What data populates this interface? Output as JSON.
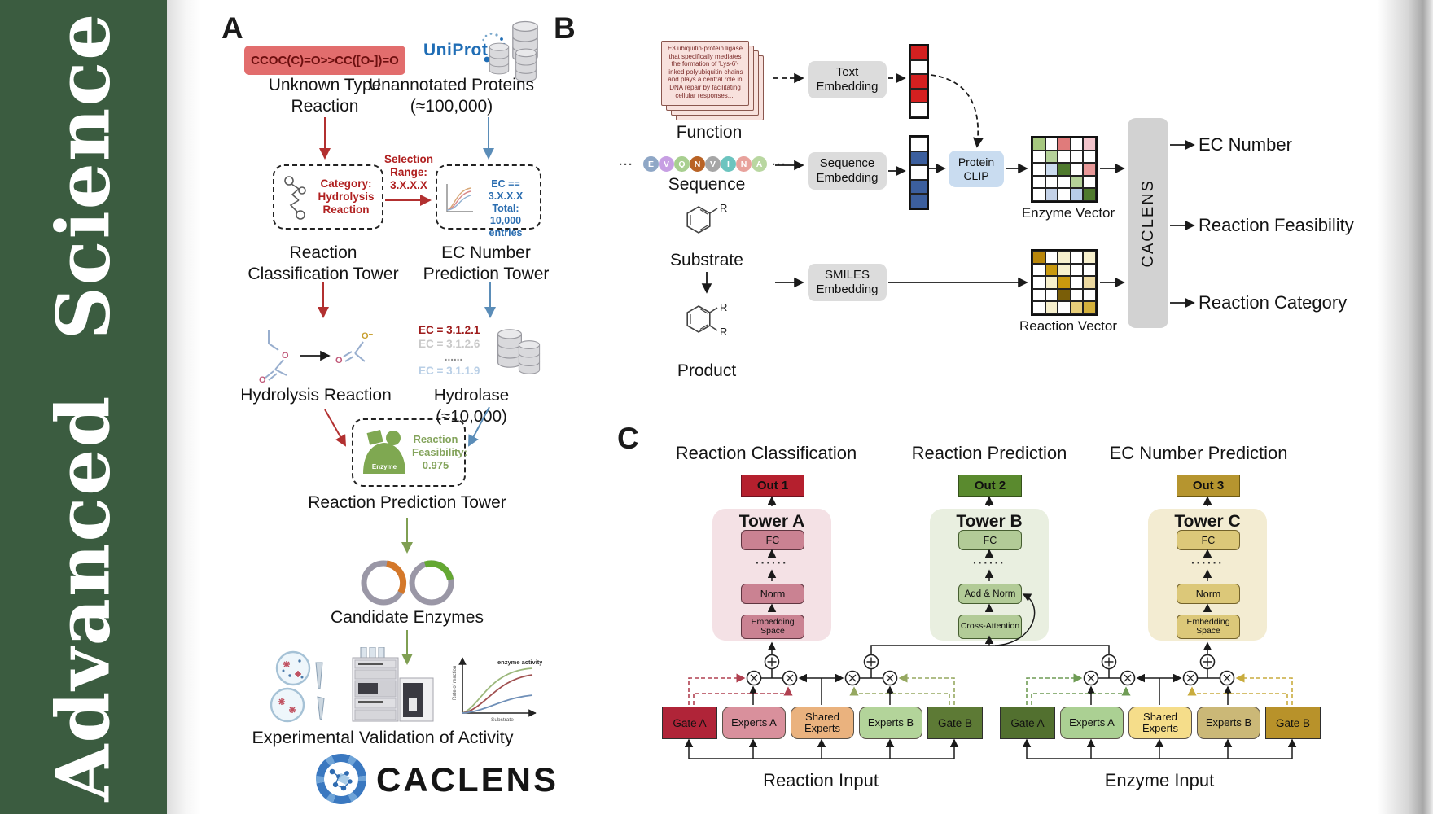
{
  "sidebar": {
    "journal": "Advanced Science",
    "bg_color": "#3b5c40"
  },
  "panelA": {
    "label": "A",
    "smiles": "CCOC(C)=O>>CC([O-])=O",
    "unknown": "Unknown Type Reaction",
    "uniprot": "UniProt",
    "unannotated": "Unannotated Proteins (≈100,000)",
    "category": [
      "Category:",
      "Hydrolysis",
      "Reaction"
    ],
    "selection": [
      "Selection",
      "Range:",
      "3.X.X.X"
    ],
    "ec_box": [
      "EC == 3.X.X.X",
      "Total: 10,000",
      "entries"
    ],
    "tower1": "Reaction Classification Tower",
    "tower2": "EC Number Prediction Tower",
    "hydrolysis": "Hydrolysis Reaction",
    "hydrolase": "Hydrolase (≈10,000)",
    "ec_list": [
      {
        "text": "EC = 3.1.2.1",
        "color": "#9e1c1c"
      },
      {
        "text": "EC = 3.1.2.6",
        "color": "#c9c9c9"
      },
      {
        "text": "......",
        "color": "#8a8a8a"
      },
      {
        "text": "EC = 3.1.1.9",
        "color": "#b9cfe6"
      }
    ],
    "feasibility": {
      "enzyme": "Enzyme",
      "lines": [
        "Reaction",
        "Feasibility:",
        "0.975"
      ]
    },
    "tower3": "Reaction Prediction Tower",
    "candidates": "Candidate Enzymes",
    "graph": {
      "annotation": "enzyme activity",
      "ylabel": "Rate of reaction",
      "xlabel": "Substrate"
    },
    "validation": "Experimental Validation of Activity",
    "logo": "CACLENS"
  },
  "panelB": {
    "label": "B",
    "function_text": "E3 ubiquitin-protein ligase that specifically mediates the formation of 'Lys-6'-linked polyubiquitin chains and plays a central role in DNA repair by facilitating cellular responses....",
    "function_label": "Function",
    "ellipsis": "···",
    "residues": [
      {
        "letter": "E",
        "color": "#8fa7c6"
      },
      {
        "letter": "V",
        "color": "#c79fe3"
      },
      {
        "letter": "Q",
        "color": "#a8cf90"
      },
      {
        "letter": "N",
        "color": "#b96325"
      },
      {
        "letter": "V",
        "color": "#a6a6a6"
      },
      {
        "letter": "I",
        "color": "#6cc4bf"
      },
      {
        "letter": "N",
        "color": "#e8a29c"
      },
      {
        "letter": "A",
        "color": "#b9d7a1"
      }
    ],
    "sequence_label": "Sequence",
    "substrate_label": "Substrate",
    "product_label": "Product",
    "r_label1": "R",
    "r_label2": "R",
    "r_label3": "R",
    "text_embedding": "Text Embedding",
    "sequence_embedding": "Sequence Embedding",
    "smiles_embedding": "SMILES Embedding",
    "protein_clip": "Protein CLIP",
    "text_vector": [
      "#d42020",
      "#ffffff",
      "#d42020",
      "#d42020",
      "#ffffff"
    ],
    "seq_vector": [
      "#ffffff",
      "#3c5f9e",
      "#ffffff",
      "#3c5f9e",
      "#3c5f9e"
    ],
    "enzyme_grid": [
      "#a6c77f",
      "#ffffff",
      "#e07b7b",
      "#ffffff",
      "#f2c4cb",
      "#ffffff",
      "#b5d29a",
      "#ffffff",
      "#ffffff",
      "#ffffff",
      "#ffffff",
      "#ccdcf0",
      "#4f7a2e",
      "#ffffff",
      "#e89898",
      "#ffffff",
      "#ffffff",
      "#ffffff",
      "#b5d29a",
      "#ffffff",
      "#ffffff",
      "#c4d2e8",
      "#ffffff",
      "#b8cce8",
      "#4f7a2e"
    ],
    "reaction_grid": [
      "#b8860b",
      "#ffffff",
      "#f7f0cd",
      "#ffffff",
      "#f7f0cd",
      "#ffffff",
      "#c9990e",
      "#f7f0cd",
      "#ffffff",
      "#ffffff",
      "#ffffff",
      "#f7f0cd",
      "#c9990e",
      "#ffffff",
      "#ecd9a0",
      "#ffffff",
      "#ffffff",
      "#7a5e08",
      "#ffffff",
      "#ffffff",
      "#ffffff",
      "#f7f0cd",
      "#ffffff",
      "#e8cf7a",
      "#d4b13c"
    ],
    "enzyme_vector_label": "Enzyme Vector",
    "reaction_vector_label": "Reaction Vector",
    "caclens": "CACLENS",
    "outputs": [
      "EC Number",
      "Reaction Feasibility",
      "Reaction Category"
    ]
  },
  "panelC": {
    "label": "C",
    "towers": [
      {
        "title": "Reaction Classification",
        "out": "Out 1",
        "out_color": "#b5202e",
        "name": "Tower A",
        "fc": "FC",
        "dots": "······",
        "mid": "Norm",
        "bottom": "Embedding Space"
      },
      {
        "title": "Reaction Prediction",
        "out": "Out 2",
        "out_color": "#5a8a2e",
        "name": "Tower B",
        "fc": "FC",
        "dots": "······",
        "mid": "Add & Norm",
        "bottom": "Cross-Attention"
      },
      {
        "title": "EC Number Prediction",
        "out": "Out 3",
        "out_color": "#b6952f",
        "name": "Tower C",
        "fc": "FC",
        "dots": "······",
        "mid": "Norm",
        "bottom": "Embedding Space"
      }
    ],
    "groups": [
      {
        "label": "Reaction Input",
        "boxes": [
          {
            "label": "Gate A",
            "color": "#b02438"
          },
          {
            "label": "Experts A",
            "color": "#d9909c"
          },
          {
            "label": "Shared Experts",
            "color": "#eab27e"
          },
          {
            "label": "Experts B",
            "color": "#b3d49a"
          },
          {
            "label": "Gate B",
            "color": "#5d7a35"
          }
        ]
      },
      {
        "label": "Enzyme Input",
        "boxes": [
          {
            "label": "Gate A",
            "color": "#52702f"
          },
          {
            "label": "Experts A",
            "color": "#abd093"
          },
          {
            "label": "Shared Experts",
            "color": "#f5dd8a"
          },
          {
            "label": "Experts B",
            "color": "#cbb877"
          },
          {
            "label": "Gate B",
            "color": "#b8922a"
          }
        ]
      }
    ]
  }
}
